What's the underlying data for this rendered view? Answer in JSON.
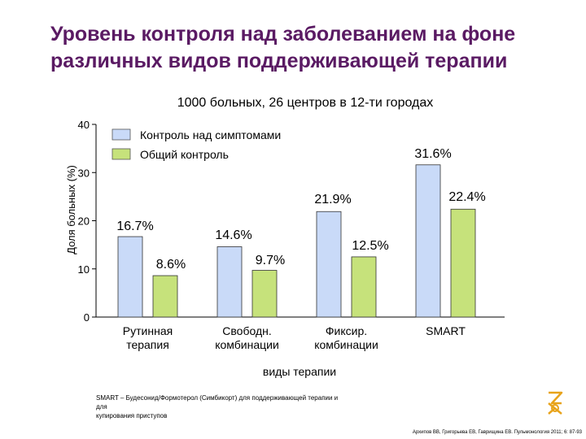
{
  "slide": {
    "title_line1": "Уровень контроля над заболеванием на фоне",
    "title_line2": "различных видов поддерживающей терапии",
    "footnote_line1": "SMART – Будесонид/Формотерол (Симбикорт) для поддерживающей терапии и для",
    "footnote_line2": "купирования приступов",
    "citation": "Архипов ВВ, Григорьева ЕВ, Гаврищина ЕВ. Пульмонология 2011; 6: 87-93"
  },
  "chart_data": {
    "type": "bar",
    "subtitle": "1000 больных, 26 центров в 12-ти городах",
    "ylabel": "Доля больных (%)",
    "xlabel": "виды терапии",
    "ylim": [
      0,
      40
    ],
    "yticks": [
      "0",
      "10",
      "20",
      "30",
      "40"
    ],
    "categories": [
      [
        "Рутинная",
        "терапия"
      ],
      [
        "Свободн.",
        "комбинации"
      ],
      [
        "Фиксир.",
        "комбинации"
      ],
      [
        "SMART"
      ]
    ],
    "series": [
      {
        "name": "Контроль над симптомами",
        "color": "#c9daf8",
        "values": [
          16.7,
          14.6,
          21.9,
          31.6
        ],
        "labels": [
          "16.7%",
          "14.6%",
          "21.9%",
          "31.6%"
        ]
      },
      {
        "name": "Общий контроль",
        "color": "#c6e27b",
        "values": [
          8.6,
          9.7,
          12.5,
          22.4
        ],
        "labels": [
          "8.6%",
          "9.7%",
          "12.5%",
          "22.4%"
        ]
      }
    ],
    "grid": false,
    "legend_position": "top-left"
  },
  "colors": {
    "title": "#5a1a63",
    "logo": "#e8a31a"
  }
}
